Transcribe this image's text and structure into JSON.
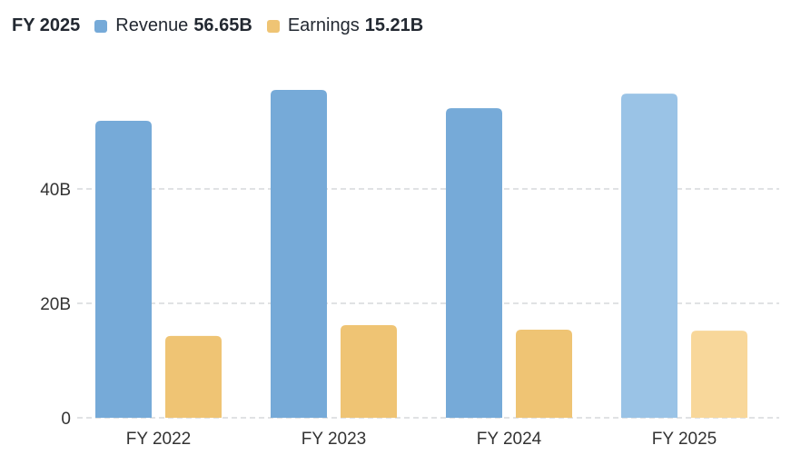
{
  "legend": {
    "period": "FY 2025",
    "revenue_label": "Revenue",
    "revenue_value": "56.65B",
    "earnings_label": "Earnings",
    "earnings_value": "15.21B"
  },
  "colors": {
    "revenue": "#76aad8",
    "earnings": "#efc474",
    "revenue_highlight": "#9ac3e6",
    "earnings_highlight": "#f8d79a",
    "grid": "#d5d8dc"
  },
  "chart_data": {
    "type": "bar",
    "title": "",
    "categories": [
      "FY 2022",
      "FY 2023",
      "FY 2024",
      "FY 2025"
    ],
    "series": [
      {
        "name": "Revenue",
        "values": [
          51.9,
          57.3,
          54.1,
          56.65
        ]
      },
      {
        "name": "Earnings",
        "values": [
          14.3,
          16.2,
          15.4,
          15.21
        ]
      }
    ],
    "highlighted_category": "FY 2025",
    "yticks": [
      0,
      20,
      40
    ],
    "ytick_labels": [
      "0",
      "20B",
      "40B"
    ],
    "ylim": [
      0,
      60
    ],
    "grid": true,
    "xlabel": "",
    "ylabel": ""
  }
}
